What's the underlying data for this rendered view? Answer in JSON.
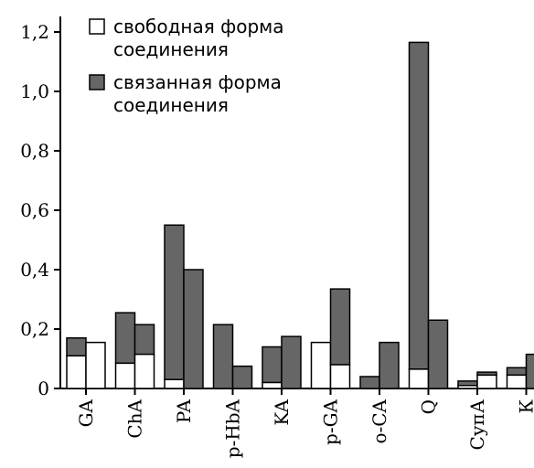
{
  "chart_data": {
    "type": "bar",
    "stacked": true,
    "categories": [
      "GA",
      "ChA",
      "PA",
      "p-HbA",
      "KA",
      "p-GA",
      "o-CA",
      "Q",
      "СупА",
      "К"
    ],
    "bars_per_category": 2,
    "series": [
      {
        "name": "свободная форма соединения",
        "color": "#ffffff",
        "values": [
          [
            0.11,
            0.155
          ],
          [
            0.085,
            0.115
          ],
          [
            0.03,
            0.0
          ],
          [
            0.0,
            0.0
          ],
          [
            0.02,
            0.0
          ],
          [
            0.155,
            0.08
          ],
          [
            0.0,
            0.0
          ],
          [
            0.065,
            0.0
          ],
          [
            0.01,
            0.045
          ],
          [
            0.045,
            0.0
          ]
        ]
      },
      {
        "name": "связанная форма соединения",
        "color": "#666666",
        "values": [
          [
            0.06,
            0.0
          ],
          [
            0.17,
            0.1
          ],
          [
            0.52,
            0.4
          ],
          [
            0.215,
            0.075
          ],
          [
            0.12,
            0.175
          ],
          [
            0.0,
            0.255
          ],
          [
            0.04,
            0.155
          ],
          [
            1.1,
            0.23
          ],
          [
            0.015,
            0.01
          ],
          [
            0.025,
            0.115
          ]
        ]
      }
    ],
    "yticks": [
      "0",
      "0,2",
      "0,4",
      "0,6",
      "0,8",
      "1,0",
      "1,2"
    ],
    "ylim": [
      0,
      1.2
    ],
    "legend": [
      {
        "line1": "свободная форма",
        "line2": "соединения"
      },
      {
        "line1": "связанная форма",
        "line2": "соединения"
      }
    ],
    "legend_position": "top-left",
    "grid": false
  }
}
